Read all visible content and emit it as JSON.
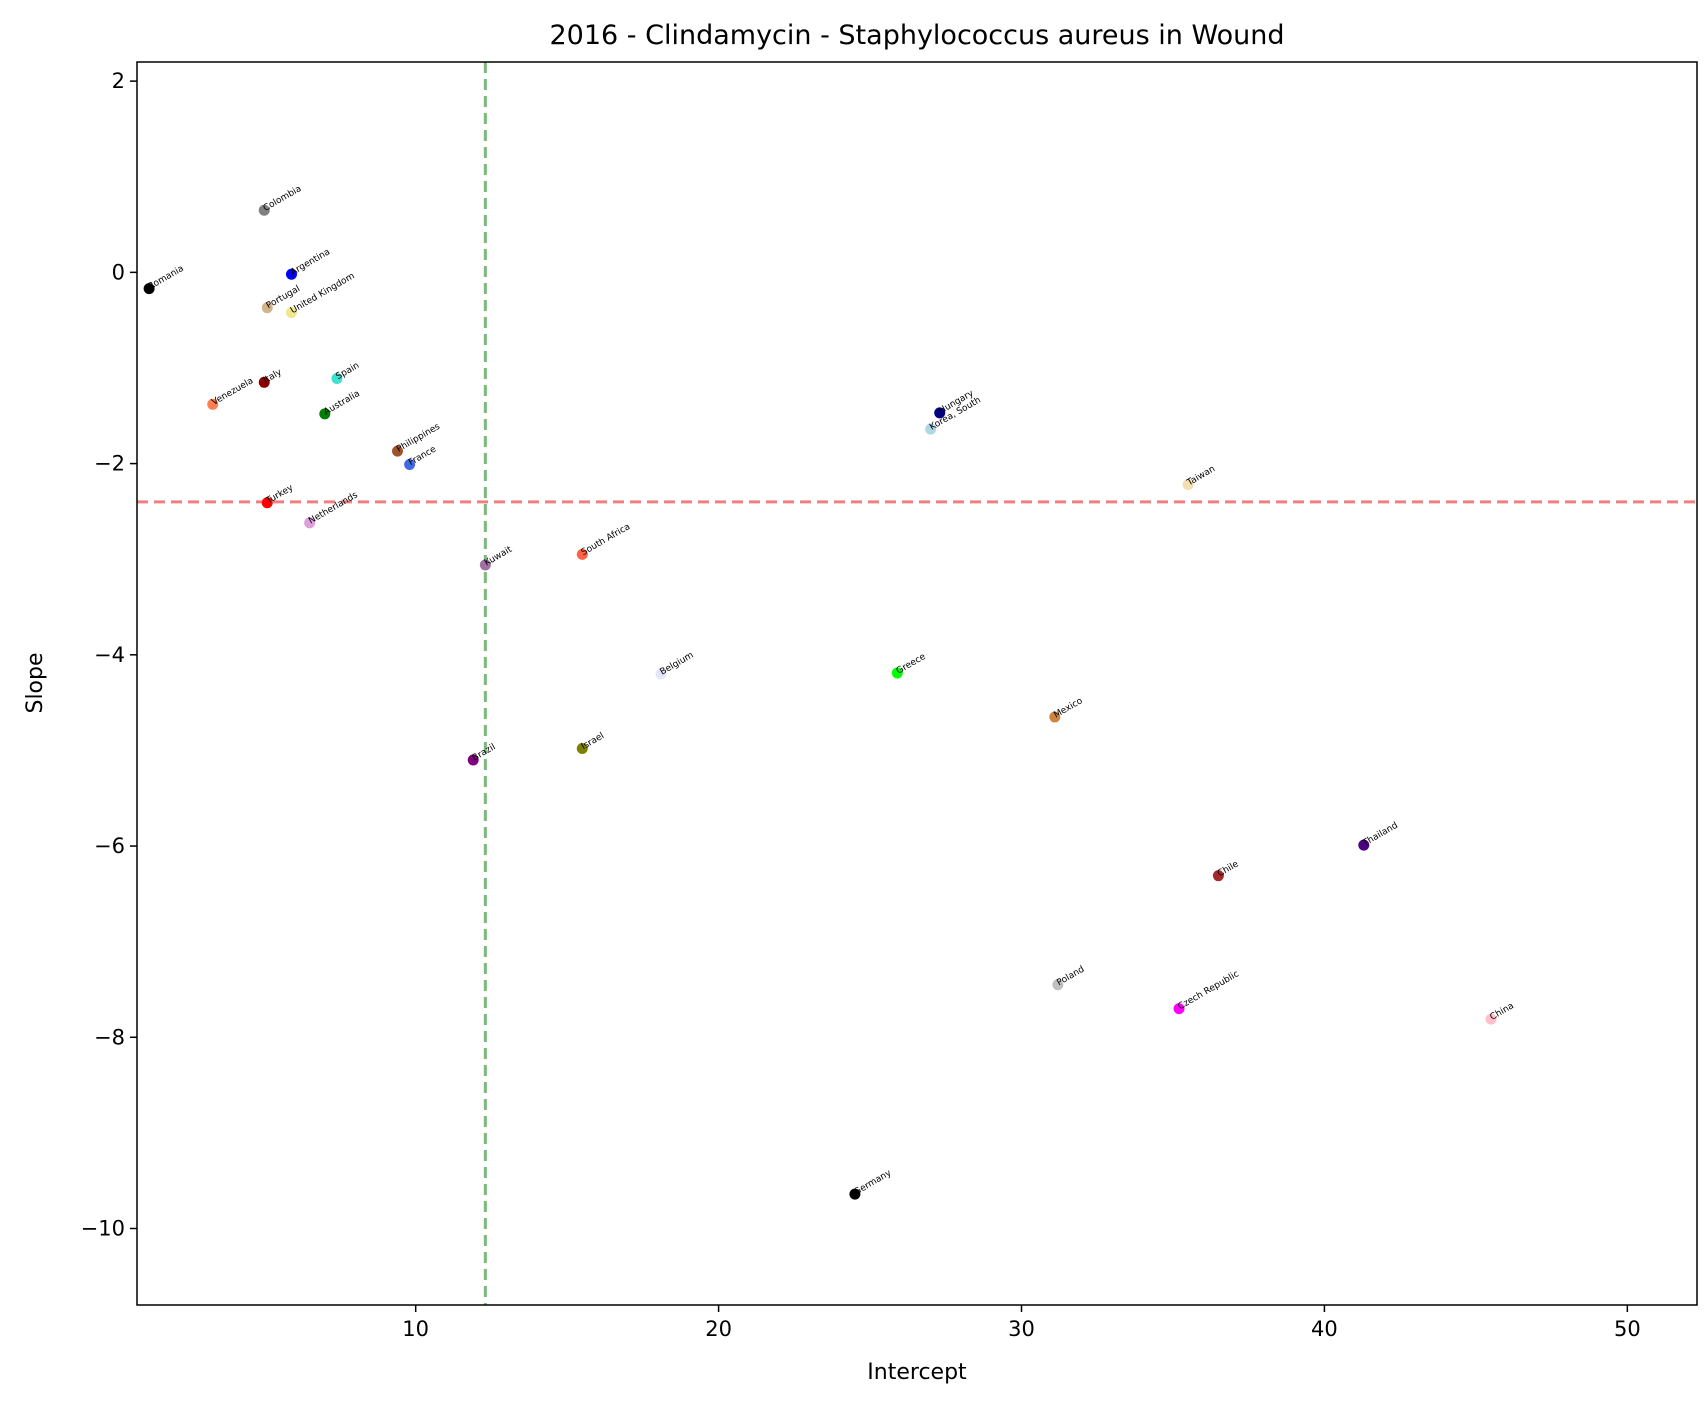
{
  "chart_data": {
    "type": "scatter",
    "title": "2016 - Clindamycin - Staphylococcus aureus in Wound",
    "xlabel": "Intercept",
    "ylabel": "Slope",
    "xlim": [
      0.8,
      52.3
    ],
    "ylim": [
      -10.8,
      2.2
    ],
    "xticks": [
      10,
      20,
      30,
      40,
      50
    ],
    "yticks": [
      2,
      0,
      -2,
      -4,
      -6,
      -8,
      -10
    ],
    "ytick_labels": [
      "2",
      "0",
      "−2",
      "−4",
      "−6",
      "−8",
      "−10"
    ],
    "grid": false,
    "reference_lines": {
      "vertical_x": 12.3,
      "vertical_color": "#7db87d",
      "horizontal_y": -2.4,
      "horizontal_color": "#f08080"
    },
    "points": [
      {
        "label": "Romania",
        "x": 1.2,
        "y": -0.17,
        "color": "#000000"
      },
      {
        "label": "Colombia",
        "x": 5.0,
        "y": 0.65,
        "color": "#808080"
      },
      {
        "label": "Argentina",
        "x": 5.9,
        "y": -0.02,
        "color": "#0000ff"
      },
      {
        "label": "Portugal",
        "x": 5.1,
        "y": -0.37,
        "color": "#d2b48c"
      },
      {
        "label": "United Kingdom",
        "x": 5.9,
        "y": -0.42,
        "color": "#f0e68c"
      },
      {
        "label": "Spain",
        "x": 7.4,
        "y": -1.11,
        "color": "#40e0d0"
      },
      {
        "label": "Italy",
        "x": 5.0,
        "y": -1.15,
        "color": "#8b0000"
      },
      {
        "label": "Venezuela",
        "x": 3.3,
        "y": -1.38,
        "color": "#ff7f50"
      },
      {
        "label": "Australia",
        "x": 7.0,
        "y": -1.48,
        "color": "#008000"
      },
      {
        "label": "Philippines",
        "x": 9.4,
        "y": -1.87,
        "color": "#a0522d"
      },
      {
        "label": "France",
        "x": 9.8,
        "y": -2.01,
        "color": "#4169e1"
      },
      {
        "label": "Turkey",
        "x": 5.1,
        "y": -2.41,
        "color": "#ff0000"
      },
      {
        "label": "Netherlands",
        "x": 6.5,
        "y": -2.62,
        "color": "#dda0dd"
      },
      {
        "label": "Kuwait",
        "x": 12.3,
        "y": -3.06,
        "color": "#a070a0"
      },
      {
        "label": "South Africa",
        "x": 15.5,
        "y": -2.95,
        "color": "#ff6347"
      },
      {
        "label": "Hungary",
        "x": 27.3,
        "y": -1.47,
        "color": "#000080"
      },
      {
        "label": "Korea, South",
        "x": 27.0,
        "y": -1.64,
        "color": "#add8e6"
      },
      {
        "label": "Taiwan",
        "x": 35.5,
        "y": -2.22,
        "color": "#f5deb3"
      },
      {
        "label": "Belgium",
        "x": 18.1,
        "y": -4.2,
        "color": "#e6e6fa"
      },
      {
        "label": "Greece",
        "x": 25.9,
        "y": -4.19,
        "color": "#00ff00"
      },
      {
        "label": "Mexico",
        "x": 31.1,
        "y": -4.65,
        "color": "#cd853f"
      },
      {
        "label": "Brazil",
        "x": 11.9,
        "y": -5.1,
        "color": "#800080"
      },
      {
        "label": "Israel",
        "x": 15.5,
        "y": -4.98,
        "color": "#808000"
      },
      {
        "label": "Thailand",
        "x": 41.3,
        "y": -5.99,
        "color": "#4b0082"
      },
      {
        "label": "Chile",
        "x": 36.5,
        "y": -6.31,
        "color": "#a52a2a"
      },
      {
        "label": "Poland",
        "x": 31.2,
        "y": -7.45,
        "color": "#c0c0c0"
      },
      {
        "label": "Czech Republic",
        "x": 35.2,
        "y": -7.7,
        "color": "#ff00ff"
      },
      {
        "label": "China",
        "x": 45.5,
        "y": -7.81,
        "color": "#ffc0cb"
      },
      {
        "label": "Germany",
        "x": 24.5,
        "y": -9.64,
        "color": "#000000"
      }
    ]
  }
}
